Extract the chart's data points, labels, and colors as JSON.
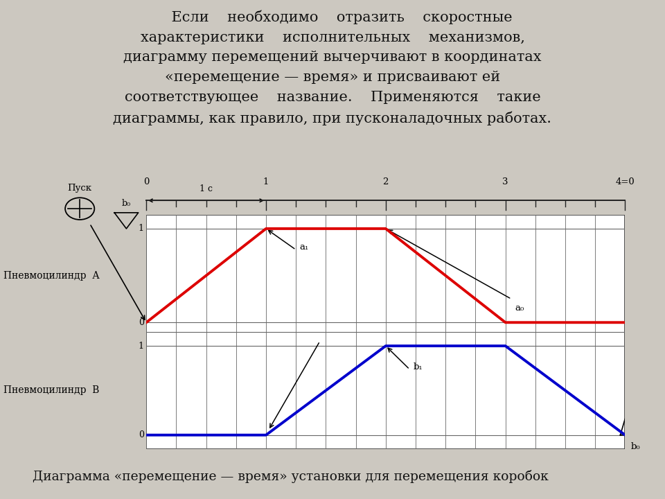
{
  "bg_color": "#ccc8c0",
  "diagram_bg": "#ffffff",
  "bottom_text": "Диаграмма «перемещение — время» установки для перемещения коробок",
  "time_label": "1 с",
  "pusk_label": "Пуск",
  "b0_label_top": "b₀",
  "a1_label": "a₁",
  "a0_label": "a₀",
  "b1_label": "b₁",
  "b0_label_bot": "b₀",
  "pnev_a_label": "Пневмоцилиндр  А",
  "pnev_b_label": "Пневмоцилиндр  В",
  "red_line_x": [
    0,
    1,
    2,
    3,
    4
  ],
  "red_line_y": [
    0,
    1,
    1,
    0,
    0
  ],
  "blue_line_x": [
    0,
    1,
    2,
    3,
    4
  ],
  "blue_line_y": [
    0,
    0,
    1,
    1,
    0
  ],
  "red_color": "#dd0000",
  "blue_color": "#0000cc",
  "grid_color": "#666666",
  "tick_labels": [
    "0",
    "1",
    "2",
    "3",
    "4=0"
  ]
}
